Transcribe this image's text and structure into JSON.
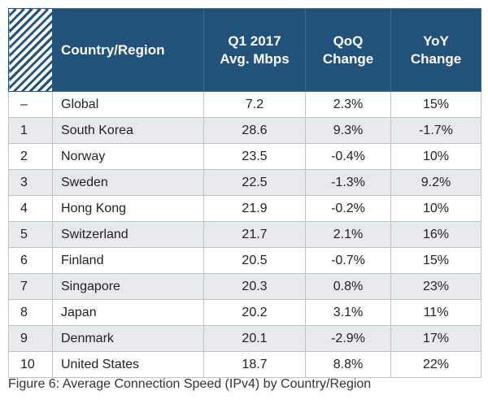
{
  "chart_data": {
    "type": "table",
    "columns": [
      "",
      "Country/Region",
      "Q1 2017\nAvg. Mbps",
      "QoQ\nChange",
      "YoY\nChange"
    ],
    "rows": [
      {
        "rank": "–",
        "country": "Global",
        "avg_mbps": "7.2",
        "qoq": "2.3%",
        "yoy": "15%"
      },
      {
        "rank": "1",
        "country": "South Korea",
        "avg_mbps": "28.6",
        "qoq": "9.3%",
        "yoy": "-1.7%"
      },
      {
        "rank": "2",
        "country": "Norway",
        "avg_mbps": "23.5",
        "qoq": "-0.4%",
        "yoy": "10%"
      },
      {
        "rank": "3",
        "country": "Sweden",
        "avg_mbps": "22.5",
        "qoq": "-1.3%",
        "yoy": "9.2%"
      },
      {
        "rank": "4",
        "country": "Hong Kong",
        "avg_mbps": "21.9",
        "qoq": "-0.2%",
        "yoy": "10%"
      },
      {
        "rank": "5",
        "country": "Switzerland",
        "avg_mbps": "21.7",
        "qoq": "2.1%",
        "yoy": "16%"
      },
      {
        "rank": "6",
        "country": "Finland",
        "avg_mbps": "20.5",
        "qoq": "-0.7%",
        "yoy": "15%"
      },
      {
        "rank": "7",
        "country": "Singapore",
        "avg_mbps": "20.3",
        "qoq": "0.8%",
        "yoy": "23%"
      },
      {
        "rank": "8",
        "country": "Japan",
        "avg_mbps": "20.2",
        "qoq": "3.1%",
        "yoy": "11%"
      },
      {
        "rank": "9",
        "country": "Denmark",
        "avg_mbps": "20.1",
        "qoq": "-2.9%",
        "yoy": "17%"
      },
      {
        "rank": "10",
        "country": "United States",
        "avg_mbps": "18.7",
        "qoq": "8.8%",
        "yoy": "22%"
      }
    ],
    "caption": "Figure 6: Average Connection Speed (IPv4) by Country/Region"
  },
  "colors": {
    "header_bg": "#22527a",
    "header_text": "#ffffff",
    "alt_row_bg": "#e7e9ec",
    "grid_line": "#bfc4c9"
  }
}
